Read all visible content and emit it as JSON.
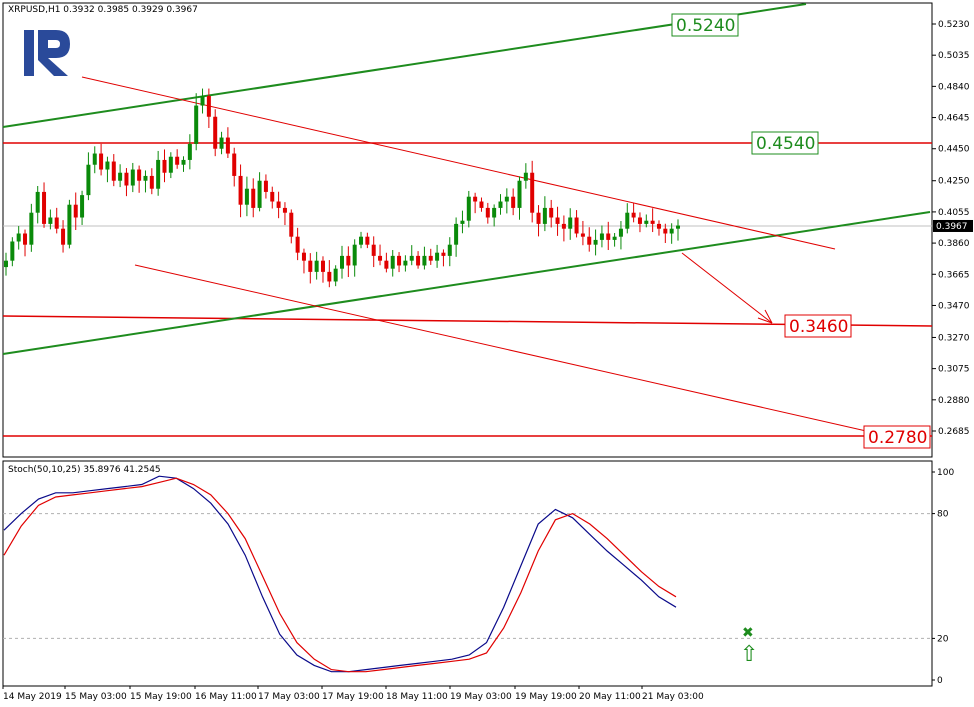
{
  "window": {
    "symbol_label": "XRPUSD,H1  0.3932 0.3985 0.3929 0.3967"
  },
  "colors": {
    "bull": "#0a8a0a",
    "bear": "#e00000",
    "support_line": "#1e8c1e",
    "resistance_line": "#e00000",
    "stoch_main": "#0a0a8a",
    "stoch_signal": "#e00000",
    "logo": "#2a4a9a"
  },
  "chart_data": [
    {
      "type": "candlestick",
      "ylim": [
        0.2685,
        0.533
      ],
      "y_ticks": [
        "0.5230",
        "0.5035",
        "0.4840",
        "0.4645",
        "0.4450",
        "0.4250",
        "0.4055",
        "0.3860",
        "0.3665",
        "0.3470",
        "0.3270",
        "0.3075",
        "0.2880",
        "0.2685"
      ],
      "current_price": "0.3967",
      "x_ticks": [
        "14 May 2019",
        "15 May 03:00",
        "15 May 19:00",
        "16 May 11:00",
        "17 May 03:00",
        "17 May 19:00",
        "18 May 11:00",
        "19 May 03:00",
        "19 May 19:00",
        "20 May 11:00",
        "21 May 03:00"
      ],
      "levels": [
        {
          "label": "0.5240",
          "value": 0.524,
          "color": "green"
        },
        {
          "label": "0.4540",
          "value": 0.454,
          "color": "green"
        },
        {
          "label": "0.3460",
          "value": 0.346,
          "color": "red"
        },
        {
          "label": "0.2780",
          "value": 0.278,
          "color": "red"
        }
      ],
      "trend_points": [
        0.375,
        0.387,
        0.392,
        0.385,
        0.405,
        0.418,
        0.398,
        0.402,
        0.395,
        0.385,
        0.41,
        0.402,
        0.416,
        0.435,
        0.442,
        0.432,
        0.437,
        0.425,
        0.43,
        0.422,
        0.432,
        0.425,
        0.428,
        0.42,
        0.438,
        0.43,
        0.44,
        0.435,
        0.438,
        0.448,
        0.472,
        0.478,
        0.465,
        0.445,
        0.452,
        0.442,
        0.428,
        0.41,
        0.42,
        0.408,
        0.425,
        0.418,
        0.412,
        0.408,
        0.405,
        0.39,
        0.38,
        0.375,
        0.368,
        0.375,
        0.368,
        0.362,
        0.37,
        0.378,
        0.372,
        0.385,
        0.39,
        0.385,
        0.378,
        0.375,
        0.37,
        0.378,
        0.372,
        0.375,
        0.378,
        0.372,
        0.378,
        0.375,
        0.38,
        0.378,
        0.385,
        0.398,
        0.4,
        0.415,
        0.412,
        0.408,
        0.402,
        0.408,
        0.412,
        0.415,
        0.408,
        0.425,
        0.43,
        0.405,
        0.398,
        0.408,
        0.402,
        0.398,
        0.395,
        0.402,
        0.392,
        0.39,
        0.385,
        0.388,
        0.392,
        0.388,
        0.39,
        0.395,
        0.405,
        0.402,
        0.398,
        0.4,
        0.398,
        0.395,
        0.392,
        0.395,
        0.397
      ]
    },
    {
      "type": "line",
      "title": "Stoch(50,10,25) 35.8976 41.2545",
      "ylim": [
        0,
        100
      ],
      "y_ticks": [
        "100",
        "80",
        "20",
        "0"
      ],
      "guide_levels": [
        80,
        20
      ],
      "series": [
        {
          "values": [
            72,
            80,
            87,
            90,
            90,
            91,
            92,
            93,
            94,
            98,
            97,
            92,
            85,
            75,
            60,
            40,
            22,
            12,
            7,
            4,
            4,
            5,
            6,
            7,
            8,
            9,
            10,
            12,
            18,
            35,
            55,
            75,
            82,
            78,
            70,
            62,
            55,
            48,
            40,
            35
          ]
        },
        {
          "values": [
            60,
            74,
            84,
            88,
            89,
            90,
            91,
            92,
            93,
            95,
            97,
            94,
            89,
            80,
            68,
            50,
            32,
            18,
            10,
            5,
            4,
            4,
            5,
            6,
            7,
            8,
            9,
            10,
            13,
            25,
            42,
            62,
            77,
            80,
            75,
            68,
            60,
            52,
            45,
            40
          ]
        }
      ]
    }
  ],
  "signal": {
    "x_mark": "✖",
    "arrow": "⇧"
  }
}
